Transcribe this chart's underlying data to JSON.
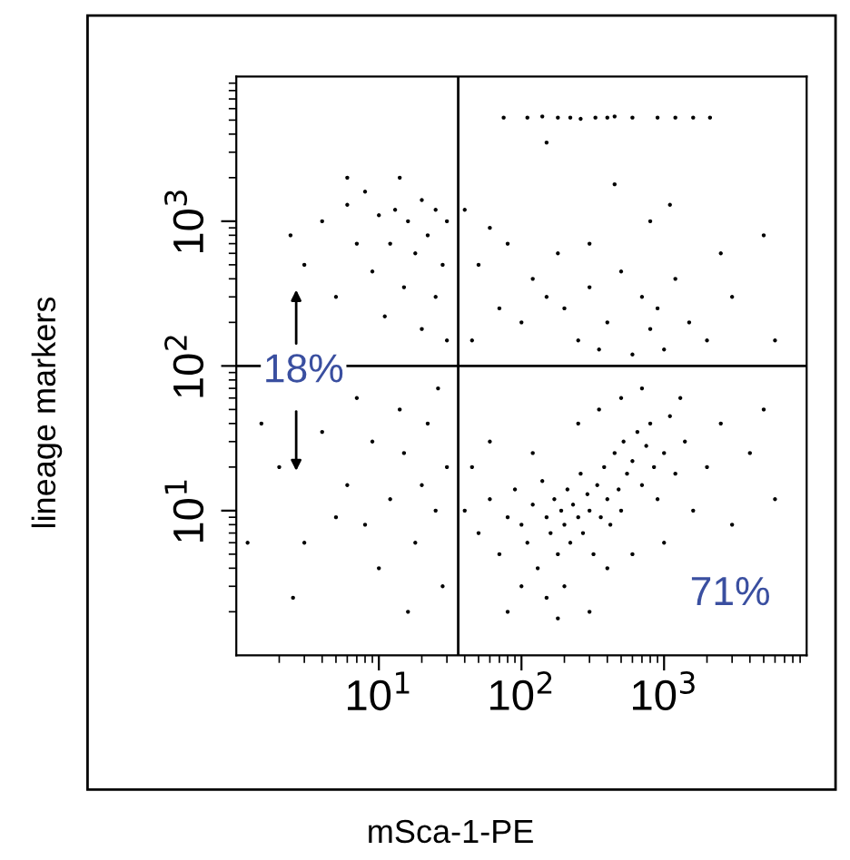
{
  "chart_data": {
    "type": "scatter",
    "xlabel": "mSca-1-PE",
    "ylabel": "lineage markers",
    "log": "xy",
    "grid": false,
    "marker": "circle",
    "xlim": [
      1,
      10000
    ],
    "ylim": [
      1,
      10000
    ],
    "xticks": [
      {
        "value": 10,
        "label": "10$^{1}$"
      },
      {
        "value": 100,
        "label": "10$^{2}$"
      },
      {
        "value": 1000,
        "label": "10$^{3}$"
      }
    ],
    "yticks": [
      {
        "value": 10,
        "label": "10$^{1}$"
      },
      {
        "value": 100,
        "label": "10$^{2}$"
      },
      {
        "value": 1000,
        "label": "10$^{3}$"
      }
    ],
    "ref_lines": [
      {
        "axis": "x",
        "value": 36,
        "color": "#000000"
      },
      {
        "axis": "y",
        "value": 100,
        "color": "#000000"
      }
    ],
    "annotations": [
      "18%",
      "71%"
    ],
    "series": [
      {
        "color": "#000000",
        "x": [
          75,
          110,
          140,
          180,
          220,
          260,
          330,
          400,
          450,
          600,
          900,
          1200,
          1600,
          2100,
          2.4,
          4,
          6,
          8,
          10,
          13,
          16,
          20,
          25,
          30,
          7,
          12,
          18,
          22,
          28,
          9,
          15,
          5,
          3,
          25,
          11,
          20,
          30,
          6,
          14,
          40,
          60,
          50,
          80,
          120,
          150,
          200,
          300,
          400,
          500,
          700,
          900,
          1200,
          1500,
          2000,
          3000,
          5000,
          6000,
          100,
          250,
          350,
          600,
          800,
          1000,
          70,
          45,
          180,
          1100,
          2500,
          150,
          450,
          800,
          300,
          1.5,
          2,
          3,
          2.5,
          4,
          6,
          8,
          10,
          12,
          15,
          18,
          20,
          25,
          28,
          30,
          14,
          22,
          9,
          5,
          16,
          1.2,
          7,
          26,
          40,
          50,
          60,
          70,
          80,
          90,
          100,
          110,
          120,
          130,
          140,
          150,
          160,
          170,
          180,
          190,
          200,
          210,
          220,
          230,
          250,
          260,
          270,
          290,
          300,
          320,
          340,
          360,
          380,
          400,
          420,
          450,
          480,
          500,
          520,
          550,
          600,
          650,
          700,
          750,
          800,
          850,
          900,
          1000,
          1100,
          1200,
          1400,
          1600,
          2000,
          3000,
          4000,
          6000,
          150,
          200,
          300,
          400,
          600,
          1000,
          100,
          80,
          250,
          350,
          500,
          700,
          1300,
          60,
          45,
          120,
          180,
          2500,
          5000
        ],
        "values": [
          5200,
          5200,
          5300,
          5200,
          5200,
          5100,
          5200,
          5200,
          5300,
          5200,
          5200,
          5200,
          5200,
          5200,
          800,
          1000,
          1300,
          1600,
          1100,
          1200,
          1000,
          1400,
          1200,
          1000,
          700,
          700,
          600,
          800,
          500,
          450,
          350,
          300,
          500,
          300,
          220,
          180,
          150,
          2000,
          2000,
          1200,
          900,
          500,
          700,
          400,
          300,
          250,
          350,
          200,
          450,
          300,
          250,
          400,
          200,
          150,
          300,
          800,
          150,
          200,
          150,
          130,
          120,
          180,
          130,
          250,
          150,
          600,
          1300,
          600,
          3500,
          1800,
          1000,
          700,
          40,
          20,
          6,
          2.5,
          35,
          15,
          8,
          4,
          12,
          25,
          6,
          15,
          10,
          3,
          20,
          50,
          40,
          30,
          9,
          2,
          6,
          60,
          70,
          10,
          7,
          12,
          5,
          9,
          14,
          8,
          6,
          11,
          4,
          16,
          9,
          7,
          12,
          5,
          10,
          8,
          14,
          6,
          11,
          9,
          18,
          7,
          13,
          10,
          5,
          15,
          9,
          20,
          12,
          8,
          25,
          14,
          10,
          30,
          18,
          22,
          35,
          15,
          28,
          40,
          20,
          12,
          25,
          45,
          18,
          30,
          10,
          20,
          8,
          25,
          12,
          2.5,
          3,
          2,
          4,
          5,
          6,
          3,
          2,
          40,
          50,
          60,
          70,
          60,
          30,
          20,
          25,
          1.8,
          40,
          50
        ]
      }
    ]
  }
}
